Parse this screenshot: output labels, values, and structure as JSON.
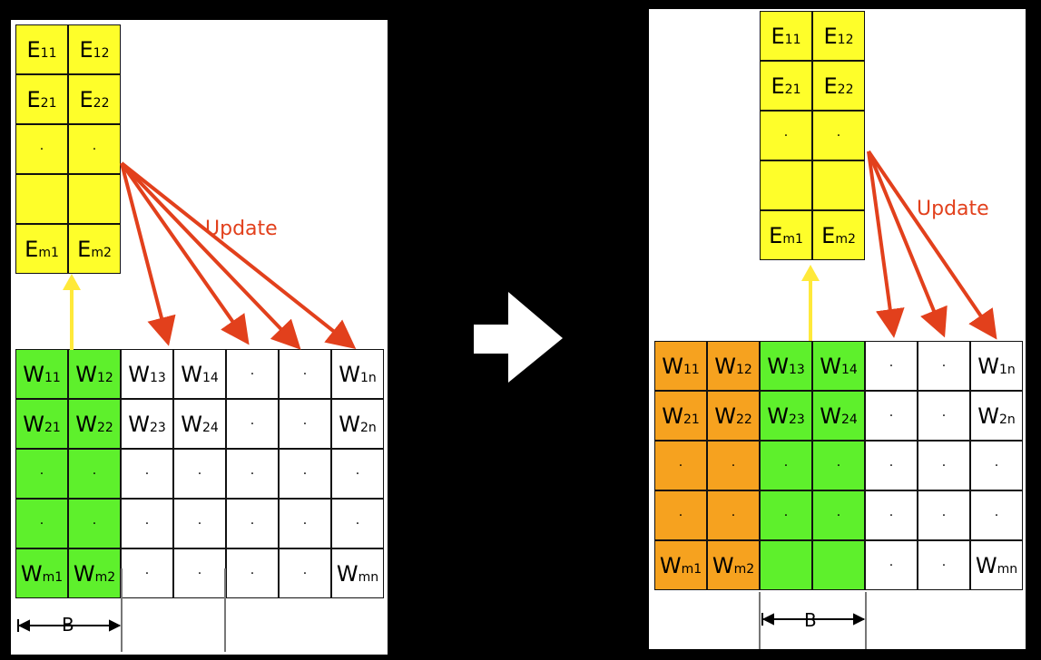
{
  "left": {
    "embedding_cells": [
      {
        "main": "E",
        "sub": "11"
      },
      {
        "main": "E",
        "sub": "12"
      },
      {
        "main": "E",
        "sub": "21"
      },
      {
        "main": "E",
        "sub": "22"
      },
      {
        "main": ".",
        "sub": ""
      },
      {
        "main": ".",
        "sub": ""
      },
      {
        "main": "",
        "sub": ""
      },
      {
        "main": "",
        "sub": ""
      },
      {
        "main": "E",
        "sub": "m1"
      },
      {
        "main": "E",
        "sub": "m2"
      }
    ],
    "weight_rows": [
      [
        {
          "main": "W",
          "sub": "11"
        },
        {
          "main": "W",
          "sub": "12"
        },
        {
          "main": "W",
          "sub": "13"
        },
        {
          "main": "W",
          "sub": "14"
        },
        {
          "main": ".",
          "sub": ""
        },
        {
          "main": ".",
          "sub": ""
        },
        {
          "main": "W",
          "sub": "1n"
        }
      ],
      [
        {
          "main": "W",
          "sub": "21"
        },
        {
          "main": "W",
          "sub": "22"
        },
        {
          "main": "W",
          "sub": "23"
        },
        {
          "main": "W",
          "sub": "24"
        },
        {
          "main": ".",
          "sub": ""
        },
        {
          "main": ".",
          "sub": ""
        },
        {
          "main": "W",
          "sub": "2n"
        }
      ],
      [
        {
          "main": ".",
          "sub": ""
        },
        {
          "main": ".",
          "sub": ""
        },
        {
          "main": ".",
          "sub": ""
        },
        {
          "main": ".",
          "sub": ""
        },
        {
          "main": ".",
          "sub": ""
        },
        {
          "main": ".",
          "sub": ""
        },
        {
          "main": ".",
          "sub": ""
        }
      ],
      [
        {
          "main": ".",
          "sub": ""
        },
        {
          "main": ".",
          "sub": ""
        },
        {
          "main": ".",
          "sub": ""
        },
        {
          "main": ".",
          "sub": ""
        },
        {
          "main": ".",
          "sub": ""
        },
        {
          "main": ".",
          "sub": ""
        },
        {
          "main": ".",
          "sub": ""
        }
      ],
      [
        {
          "main": "W",
          "sub": "m1"
        },
        {
          "main": "W",
          "sub": "m2"
        },
        {
          "main": ".",
          "sub": ""
        },
        {
          "main": ".",
          "sub": ""
        },
        {
          "main": ".",
          "sub": ""
        },
        {
          "main": ".",
          "sub": ""
        },
        {
          "main": "W",
          "sub": "mn"
        }
      ]
    ],
    "update_label": "Update",
    "block_label": "B"
  },
  "right": {
    "embedding_cells": [
      {
        "main": "E",
        "sub": "11"
      },
      {
        "main": "E",
        "sub": "12"
      },
      {
        "main": "E",
        "sub": "21"
      },
      {
        "main": "E",
        "sub": "22"
      },
      {
        "main": ".",
        "sub": ""
      },
      {
        "main": ".",
        "sub": ""
      },
      {
        "main": "",
        "sub": ""
      },
      {
        "main": "",
        "sub": ""
      },
      {
        "main": "E",
        "sub": "m1"
      },
      {
        "main": "E",
        "sub": "m2"
      }
    ],
    "weight_rows": [
      [
        {
          "main": "W",
          "sub": "11"
        },
        {
          "main": "W",
          "sub": "12"
        },
        {
          "main": "W",
          "sub": "13"
        },
        {
          "main": "W",
          "sub": "14"
        },
        {
          "main": ".",
          "sub": ""
        },
        {
          "main": ".",
          "sub": ""
        },
        {
          "main": "W",
          "sub": "1n"
        }
      ],
      [
        {
          "main": "W",
          "sub": "21"
        },
        {
          "main": "W",
          "sub": "22"
        },
        {
          "main": "W",
          "sub": "23"
        },
        {
          "main": "W",
          "sub": "24"
        },
        {
          "main": ".",
          "sub": ""
        },
        {
          "main": ".",
          "sub": ""
        },
        {
          "main": "W",
          "sub": "2n"
        }
      ],
      [
        {
          "main": ".",
          "sub": ""
        },
        {
          "main": ".",
          "sub": ""
        },
        {
          "main": ".",
          "sub": ""
        },
        {
          "main": ".",
          "sub": ""
        },
        {
          "main": ".",
          "sub": ""
        },
        {
          "main": ".",
          "sub": ""
        },
        {
          "main": ".",
          "sub": ""
        }
      ],
      [
        {
          "main": ".",
          "sub": ""
        },
        {
          "main": ".",
          "sub": ""
        },
        {
          "main": ".",
          "sub": ""
        },
        {
          "main": ".",
          "sub": ""
        },
        {
          "main": ".",
          "sub": ""
        },
        {
          "main": ".",
          "sub": ""
        },
        {
          "main": ".",
          "sub": ""
        }
      ],
      [
        {
          "main": "W",
          "sub": "m1"
        },
        {
          "main": "W",
          "sub": "m2"
        },
        {
          "main": "",
          "sub": ""
        },
        {
          "main": "",
          "sub": ""
        },
        {
          "main": ".",
          "sub": ""
        },
        {
          "main": ".",
          "sub": ""
        },
        {
          "main": "W",
          "sub": "mn"
        }
      ]
    ],
    "update_label": "Update",
    "block_label": "B"
  },
  "colors": {
    "embedding": "#fefe2a",
    "active_block": "#5ef02c",
    "completed_block": "#f6a21f",
    "inactive": "#ffffff",
    "update_arrow": "#e2401c",
    "gather_arrow": "#ffe93a",
    "transition_arrow": "#ffffff"
  }
}
